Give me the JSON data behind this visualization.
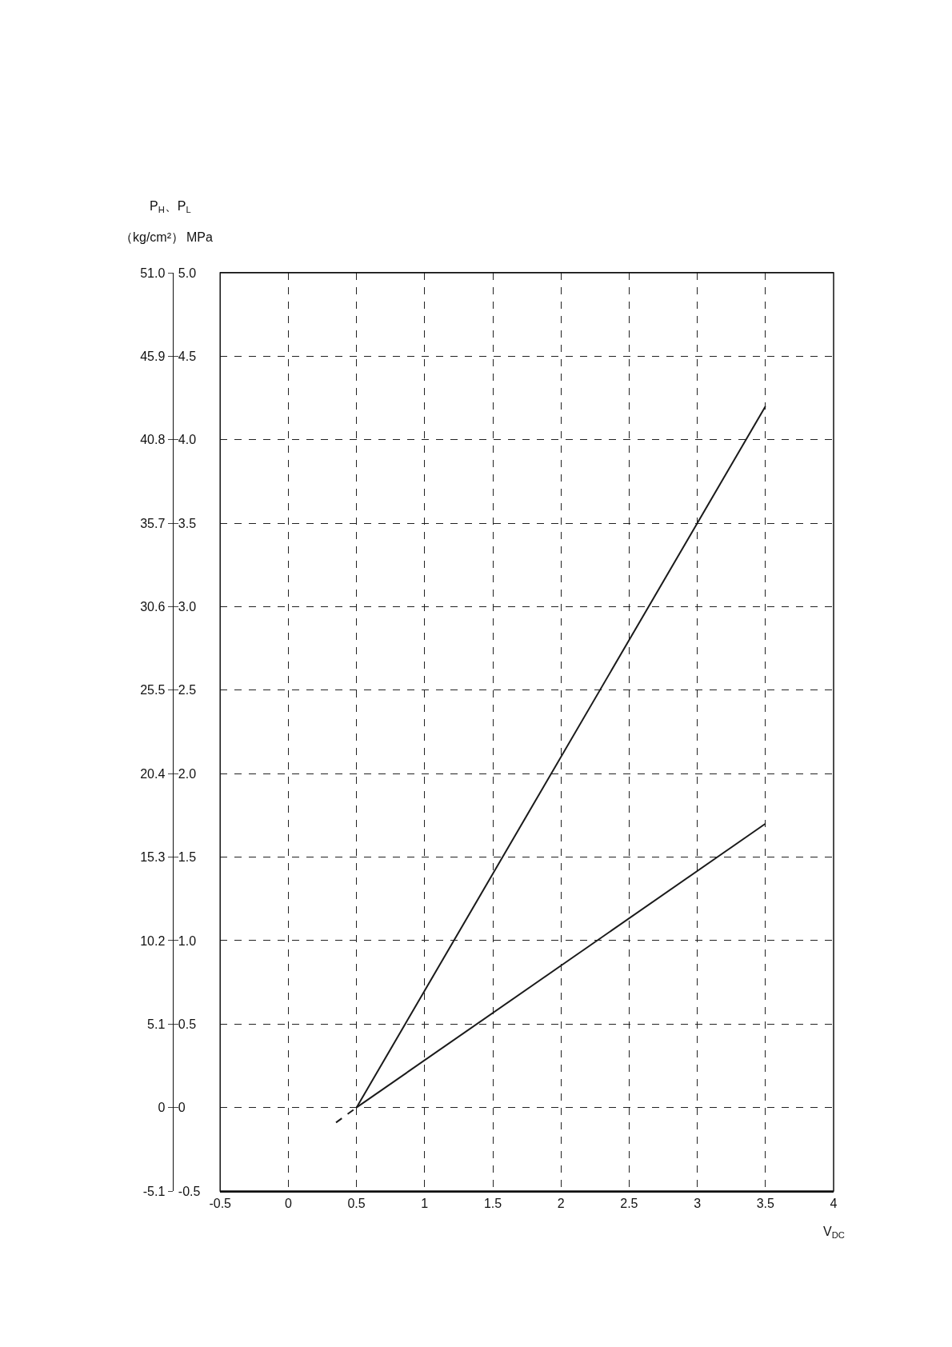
{
  "chart_data": {
    "type": "line",
    "xlabel": "V$_{DC}$",
    "ylabel": "MPa",
    "y2label": "（kg/cm²）",
    "annotations": [
      "P$_{H}$、P$_{L}$"
    ],
    "series": [
      {
        "color": "#1a1a1a",
        "x": [
          0.5,
          3.5
        ],
        "values": [
          0,
          4.2
        ]
      },
      {
        "color": "#1a1a1a",
        "x": [
          0.5,
          3.5
        ],
        "values": [
          0,
          1.7
        ]
      },
      {
        "color": "#1a1a1a",
        "x": [
          0.35,
          0.5
        ],
        "values": [
          -0.09,
          0
        ],
        "line_style": "dashed"
      }
    ],
    "xlim": [
      -0.5,
      4
    ],
    "xticks": [
      -0.5,
      0,
      0.5,
      1,
      1.5,
      2,
      2.5,
      3,
      3.5,
      4
    ],
    "ylim": [
      -0.5,
      5.0
    ],
    "yticks": [
      {
        "value": -0.5,
        "label": "-0.5"
      },
      {
        "value": 0,
        "label": "0"
      },
      {
        "value": 0.5,
        "label": "0.5"
      },
      {
        "value": 1,
        "label": "1.0"
      },
      {
        "value": 1.5,
        "label": "1.5"
      },
      {
        "value": 2,
        "label": "2.0"
      },
      {
        "value": 2.5,
        "label": "2.5"
      },
      {
        "value": 3,
        "label": "3.0"
      },
      {
        "value": 3.5,
        "label": "3.5"
      },
      {
        "value": 4,
        "label": "4.0"
      },
      {
        "value": 4.5,
        "label": "4.5"
      },
      {
        "value": 5,
        "label": "5.0"
      }
    ],
    "y2lim": [
      -5.1,
      51.0
    ],
    "y2ticks": [
      -5.1,
      0,
      5.1,
      10.2,
      15.3,
      20.4,
      25.5,
      30.6,
      35.7,
      40.8,
      45.9,
      {
        "value": 51,
        "label": "51.0"
      }
    ],
    "grid": true,
    "line_style": "solid",
    "marker": "none"
  }
}
